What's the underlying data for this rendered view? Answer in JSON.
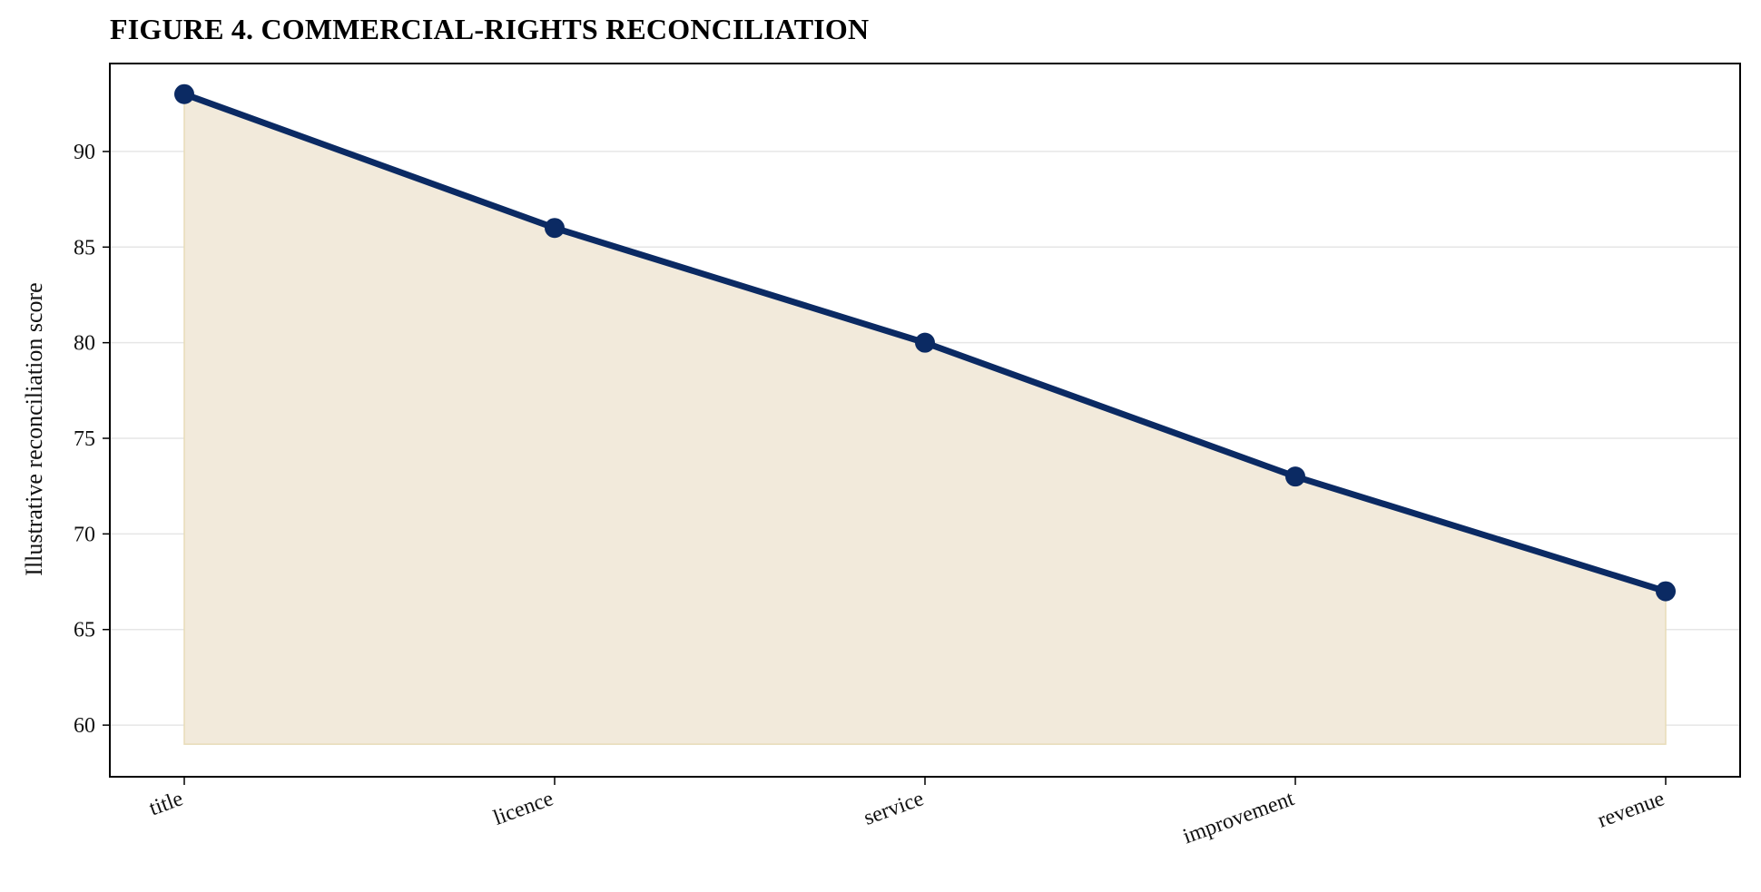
{
  "chart_data": {
    "type": "area",
    "title": "FIGURE 4. COMMERCIAL-RIGHTS RECONCILIATION",
    "xlabel": "",
    "ylabel": "Illustrative reconciliation score",
    "categories": [
      "title",
      "licence",
      "service",
      "improvement",
      "revenue"
    ],
    "series": [
      {
        "values": [
          93,
          86,
          80,
          73,
          67
        ]
      }
    ],
    "fill_baseline": 59,
    "ylim": [
      57.3,
      94.6
    ],
    "yticks": [
      60,
      65,
      70,
      75,
      80,
      85,
      90
    ],
    "grid": "horizontal",
    "legend": "none",
    "colors": {
      "line": "#0b2a63",
      "fill": "#f2eadb",
      "fill_edge": "#e8dcb8",
      "grid": "#e6e6e6",
      "axis": "#000000"
    }
  }
}
